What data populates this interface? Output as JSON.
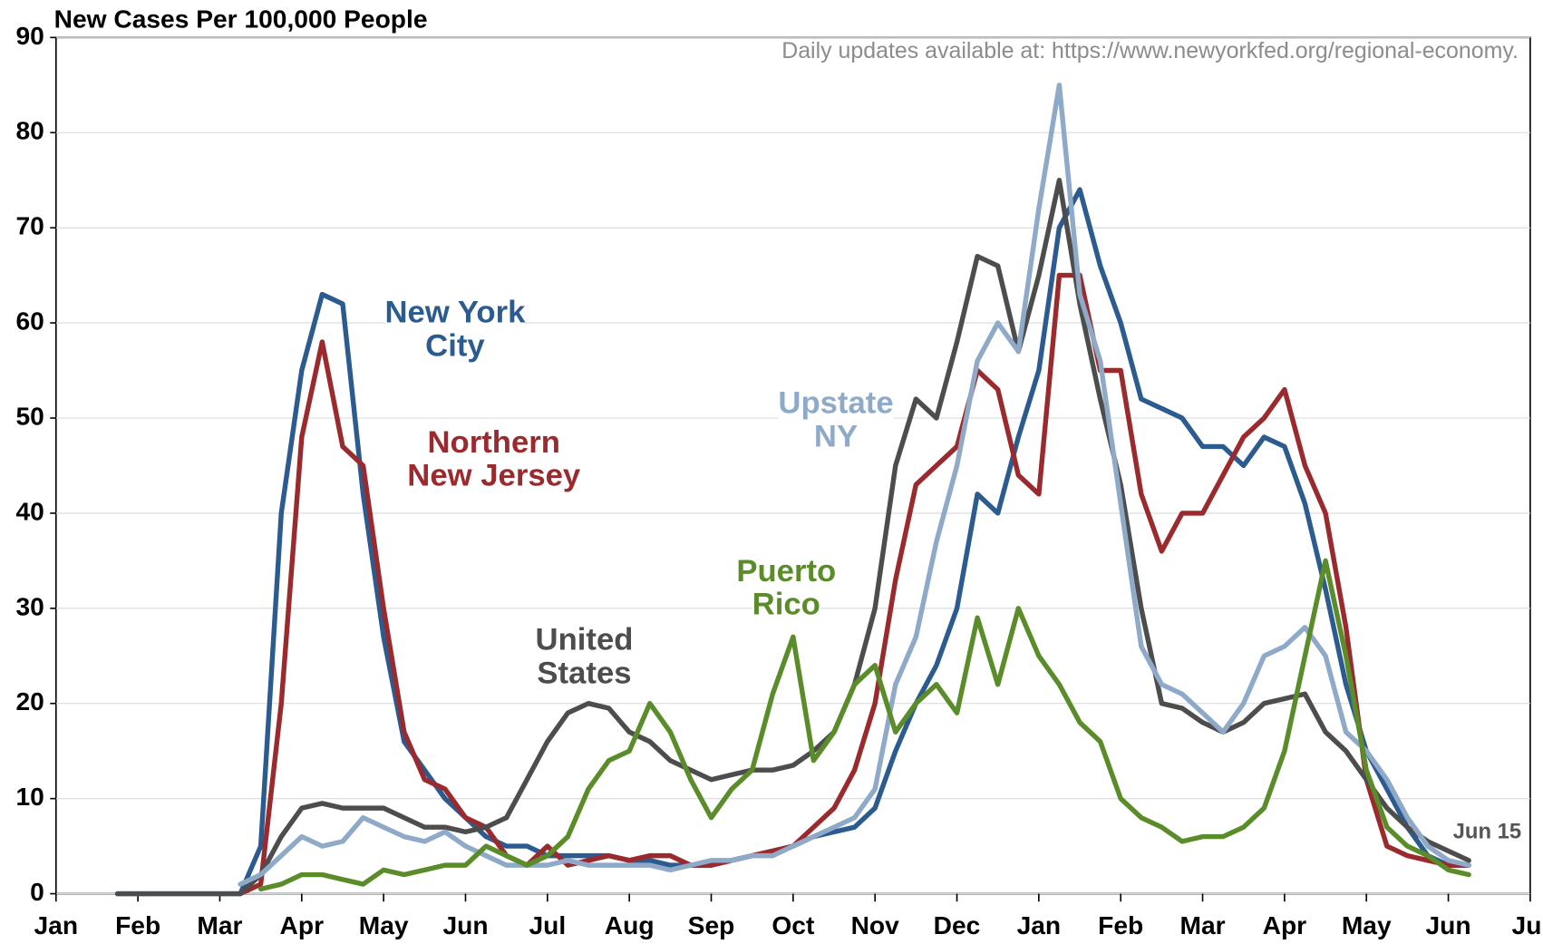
{
  "chart_data": {
    "type": "line",
    "title": "New Cases Per 100,000  People",
    "annotation": "Daily updates available  at: https://www.newyorkfed.org/regional-economy.",
    "end_label": "Jun 15",
    "x": [
      0.75,
      1,
      1.25,
      1.5,
      1.75,
      2,
      2.25,
      2.5,
      2.75,
      3,
      3.25,
      3.5,
      3.75,
      4,
      4.25,
      4.5,
      4.75,
      5,
      5.25,
      5.5,
      5.75,
      6,
      6.25,
      6.5,
      6.75,
      7,
      7.25,
      7.5,
      7.75,
      8,
      8.25,
      8.5,
      8.75,
      9,
      9.25,
      9.5,
      9.75,
      10,
      10.25,
      10.5,
      10.75,
      11,
      11.25,
      11.5,
      11.75,
      12,
      12.25,
      12.5,
      12.75,
      13,
      13.25,
      13.5,
      13.75,
      14,
      14.25,
      14.5,
      14.75,
      15,
      15.25,
      15.5,
      15.75,
      16,
      16.25,
      16.5,
      16.75,
      17,
      17.25
    ],
    "xlim": [
      0,
      18
    ],
    "xticks": [
      {
        "value": 0,
        "label": "Jan"
      },
      {
        "value": 1,
        "label": "Feb"
      },
      {
        "value": 2,
        "label": "Mar"
      },
      {
        "value": 3,
        "label": "Apr"
      },
      {
        "value": 4,
        "label": "May"
      },
      {
        "value": 5,
        "label": "Jun"
      },
      {
        "value": 6,
        "label": "Jul"
      },
      {
        "value": 7,
        "label": "Aug"
      },
      {
        "value": 8,
        "label": "Sep"
      },
      {
        "value": 9,
        "label": "Oct"
      },
      {
        "value": 10,
        "label": "Nov"
      },
      {
        "value": 11,
        "label": "Dec"
      },
      {
        "value": 12,
        "label": "Jan"
      },
      {
        "value": 13,
        "label": "Feb"
      },
      {
        "value": 14,
        "label": "Mar"
      },
      {
        "value": 15,
        "label": "Apr"
      },
      {
        "value": 16,
        "label": "May"
      },
      {
        "value": 17,
        "label": "Jun"
      },
      {
        "value": 18,
        "label": "Jul"
      }
    ],
    "ylim": [
      0,
      90
    ],
    "yticks": [
      0,
      10,
      20,
      30,
      40,
      50,
      60,
      70,
      80,
      90
    ],
    "grid": true,
    "series": [
      {
        "name": "New York City",
        "color": "#2b5b8f",
        "values": [
          0,
          0,
          0,
          0,
          0,
          0,
          0,
          5,
          40,
          55,
          63,
          62,
          42,
          27,
          16,
          13,
          10,
          8,
          6,
          5,
          5,
          4,
          4,
          4,
          4,
          3.5,
          3.5,
          3,
          3,
          3,
          3.5,
          4,
          4.5,
          5,
          6,
          6.5,
          7,
          9,
          15,
          20,
          24,
          30,
          42,
          40,
          48,
          55,
          70,
          74,
          66,
          60,
          52,
          51,
          50,
          47,
          47,
          45,
          48,
          47,
          41,
          32,
          22,
          15,
          11,
          7,
          4,
          3,
          3
        ]
      },
      {
        "name": "Northern New Jersey",
        "color": "#9b2a2e",
        "values": [
          null,
          null,
          null,
          null,
          null,
          null,
          0,
          1,
          20,
          48,
          58,
          47,
          45,
          30,
          17,
          12,
          11,
          8,
          7,
          4,
          3,
          5,
          3,
          3.5,
          4,
          3.5,
          4,
          4,
          3,
          3,
          3.5,
          4,
          4.5,
          5,
          7,
          9,
          13,
          20,
          33,
          43,
          45,
          47,
          55,
          53,
          44,
          42,
          65,
          65,
          55,
          55,
          42,
          36,
          40,
          40,
          44,
          48,
          50,
          53,
          45,
          40,
          28,
          12,
          5,
          4,
          3.5,
          3,
          3
        ]
      },
      {
        "name": "United States",
        "color": "#4d4d4d",
        "values": [
          0,
          0,
          0,
          0,
          0,
          0,
          0,
          2,
          6,
          9,
          9.5,
          9,
          9,
          9,
          8,
          7,
          7,
          6.5,
          7,
          8,
          12,
          16,
          19,
          20,
          19.5,
          17,
          16,
          14,
          13,
          12,
          12.5,
          13,
          13,
          13.5,
          15,
          17,
          22,
          30,
          45,
          52,
          50,
          58,
          67,
          66,
          57,
          65,
          75,
          62,
          52,
          43,
          30,
          20,
          19.5,
          18,
          17,
          18,
          20,
          20.5,
          21,
          17,
          15,
          12,
          9,
          7,
          5.5,
          4.5,
          3.5
        ]
      },
      {
        "name": "Upstate NY",
        "color": "#8fa9c8",
        "values": [
          null,
          null,
          null,
          null,
          null,
          null,
          1,
          2,
          4,
          6,
          5,
          5.5,
          8,
          7,
          6,
          5.5,
          6.5,
          5,
          4,
          3,
          3,
          3,
          3.5,
          3,
          3,
          3,
          3,
          2.5,
          3,
          3.5,
          3.5,
          4,
          4,
          5,
          6,
          7,
          8,
          11,
          22,
          27,
          37,
          45,
          56,
          60,
          57,
          72,
          85,
          63,
          56,
          41,
          26,
          22,
          21,
          19,
          17,
          20,
          25,
          26,
          28,
          25,
          17,
          15,
          12,
          8,
          5,
          3.5,
          3
        ]
      },
      {
        "name": "Puerto Rico",
        "color": "#5b8c2a",
        "values": [
          null,
          null,
          null,
          null,
          null,
          null,
          null,
          0.5,
          1,
          2,
          2,
          1.5,
          1,
          2.5,
          2,
          2.5,
          3,
          3,
          5,
          4,
          3,
          4,
          6,
          11,
          14,
          15,
          20,
          17,
          12,
          8,
          11,
          13,
          21,
          27,
          14,
          17,
          22,
          24,
          17,
          20,
          22,
          19,
          29,
          22,
          30,
          25,
          22,
          18,
          16,
          10,
          8,
          7,
          5.5,
          6,
          6,
          7,
          9,
          15,
          25,
          35,
          25,
          13,
          7,
          5,
          4,
          2.5,
          2
        ]
      }
    ]
  }
}
